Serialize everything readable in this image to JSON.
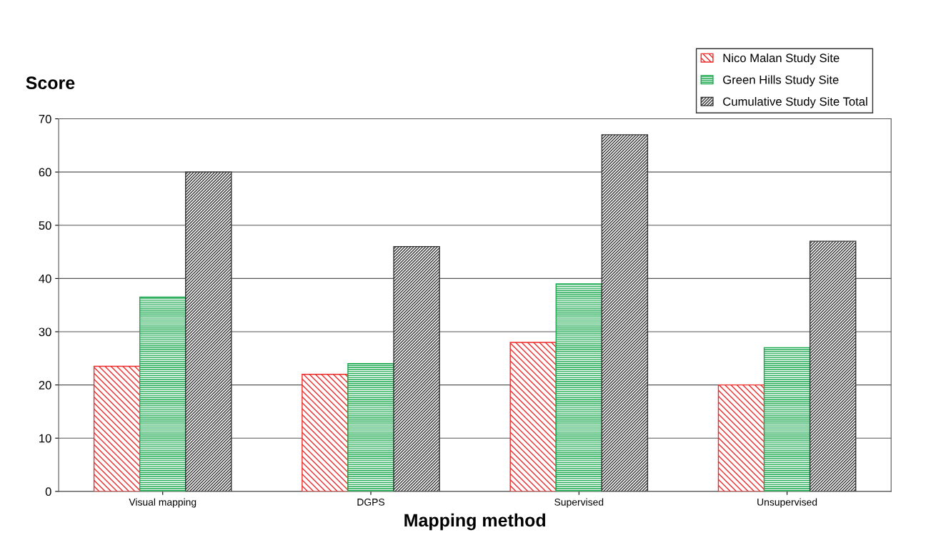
{
  "chart_data": {
    "type": "bar",
    "ylabel": "Score",
    "xlabel": "Mapping method",
    "categories": [
      "Visual mapping",
      "DGPS",
      "Supervised",
      "Unsupervised"
    ],
    "series": [
      {
        "name": "Nico Malan Study Site",
        "color": "#ee2a2a",
        "values": [
          23.5,
          22,
          28,
          20
        ]
      },
      {
        "name": "Green Hills Study Site",
        "color": "#1aa84e",
        "values": [
          36.5,
          24,
          39,
          27
        ]
      },
      {
        "name": "Cumulative Study Site Total",
        "color": "#333333",
        "values": [
          60,
          46,
          67,
          47
        ]
      }
    ],
    "ylim": [
      0,
      70
    ],
    "yticks": [
      0,
      10,
      20,
      30,
      40,
      50,
      60,
      70
    ],
    "grid": "y",
    "legend": "top right"
  }
}
